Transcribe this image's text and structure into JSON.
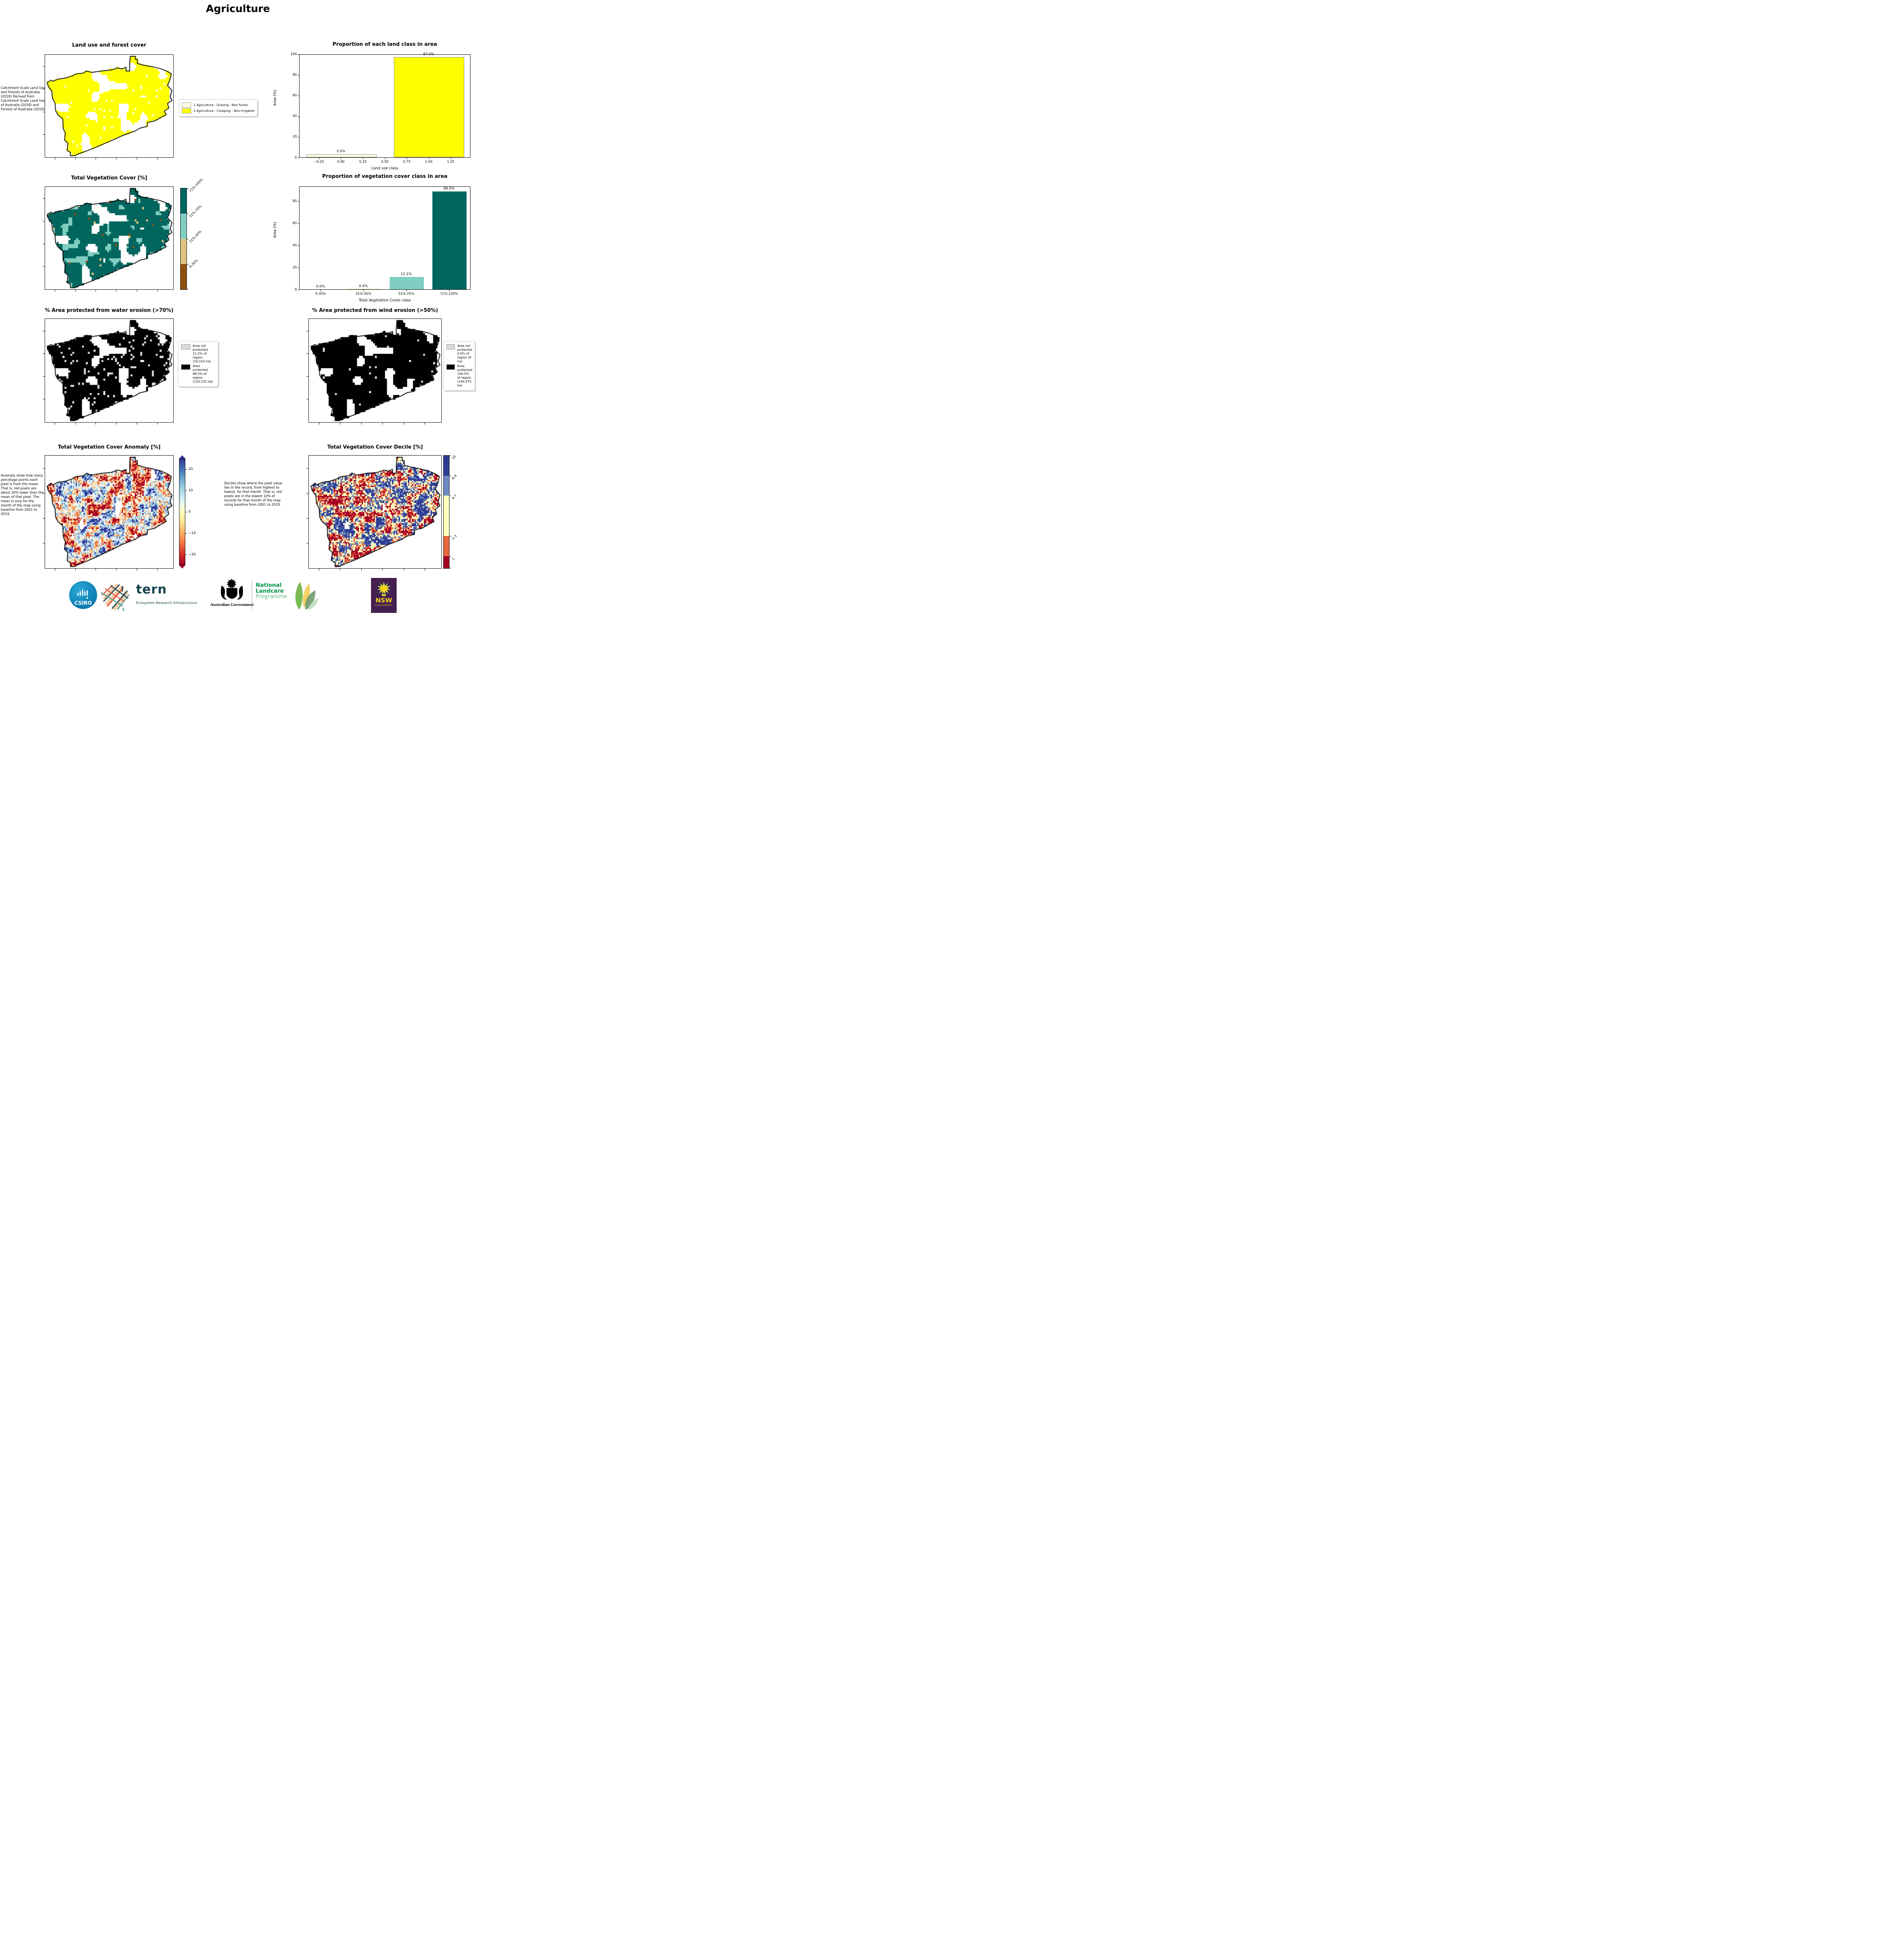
{
  "page": {
    "title": "Agriculture"
  },
  "panels": {
    "land_use": {
      "title": "Land use and forest cover",
      "side_note": " Catchment Scale Land Use and Forests of Australia (2018) Derived from Catchment Scale Land Use of Australia (2018) and Forests of Australia (2018)",
      "legend": [
        {
          "label": "1 Agriculture - Grazing - Non forest",
          "color": "#ffffe0"
        },
        {
          "label": "2 Agriculture - Cropping - Non-irrigated",
          "color": "#ffff00"
        }
      ]
    },
    "veg_cover": {
      "title": "Total Vegetation Cover [%]",
      "colorbar": [
        {
          "label": "71%-100%",
          "color": "#01665e"
        },
        {
          "label": "51%-70%",
          "color": "#80cdc1"
        },
        {
          "label": "31%-50%",
          "color": "#dfc27d"
        },
        {
          "label": "0-30%",
          "color": "#8c510a"
        }
      ]
    },
    "water_erosion": {
      "title": "% Area protected from water erosion (>70%)",
      "legend": [
        {
          "label": "Area not protected 11.5% of region (16,143 ha)",
          "color": "#d9d9d9"
        },
        {
          "label": "Area protected 88.5% of region (124,232 ha)",
          "color": "#000000"
        }
      ]
    },
    "wind_erosion": {
      "title": "% Area protected from wind erosion (>50%)",
      "legend": [
        {
          "label": "Area not protected 0.0% of region (0 ha)",
          "color": "#d9d9d9"
        },
        {
          "label": "Area protected 100.0% of region (140,375 ha)",
          "color": "#000000"
        }
      ]
    },
    "anomaly": {
      "title": "Total Vegetation Cover Anomaly [%]",
      "note": "Anomaly show how many percetage points each pixel is from the mean. That is, red pixels are about 20% lower than the mean of that pixel. The mean is only for the month of the map using baseline from 2001 to 2019.",
      "colorbar_ticks": [
        {
          "label": "20",
          "value": 20
        },
        {
          "label": "10",
          "value": 10
        },
        {
          "label": "0",
          "value": 0
        },
        {
          "label": "−10",
          "value": -10
        },
        {
          "label": "−20",
          "value": -20
        }
      ],
      "range": [
        -25,
        25
      ]
    },
    "decile": {
      "title": "Total Vegetation Cover Decile [%]",
      "note": "Deciles show where the pixel value lies in the record, from highest to lowest, for that month. That is, red pixels are in the lowest 10% of records for that month of the map using baseline from 2001 to 2019.",
      "colorbar": [
        {
          "label": "10",
          "color": "#2f3c94",
          "frac": 0.178
        },
        {
          "label": "8-9",
          "color": "#6e8ac1",
          "frac": 0.177
        },
        {
          "label": "4-7",
          "color": "#ffffbf",
          "frac": 0.358
        },
        {
          "label": "2-3",
          "color": "#e8693f",
          "frac": 0.181
        },
        {
          "label": "1",
          "color": "#a50026",
          "frac": 0.106
        }
      ]
    }
  },
  "chart_data": [
    {
      "type": "bar",
      "title": "Proportion of each land class in area",
      "xlabel": "Land use class",
      "ylabel": "Area (%)",
      "xmode": "numeric",
      "x": [
        0,
        1
      ],
      "values": [
        3.0,
        97.0
      ],
      "bar_labels": [
        "3.0%",
        "97.0%"
      ],
      "bar_colors": [
        "#ffffe0",
        "#ffff00"
      ],
      "bar_edge": "#8a8a8a",
      "bar_width": 0.8,
      "xlim": [
        -0.475,
        1.475
      ],
      "ylim": [
        0,
        100
      ],
      "xticks": {
        "values": [
          -0.25,
          0.0,
          0.25,
          0.5,
          0.75,
          1.0,
          1.25
        ],
        "labels": [
          "−0.25",
          "0.00",
          "0.25",
          "0.50",
          "0.75",
          "1.00",
          "1.25"
        ]
      },
      "yticks": {
        "values": [
          0,
          20,
          40,
          60,
          80,
          100
        ],
        "labels": [
          "0",
          "20",
          "40",
          "60",
          "80",
          "100"
        ]
      },
      "legend_position": "none",
      "grid": false
    },
    {
      "type": "bar",
      "title": "Proportion of vegetation cover class in area",
      "xlabel": "Total Vegetation Cover class",
      "ylabel": "Area (%)",
      "xmode": "categorical",
      "categories": [
        "0-30%",
        "31%-50%",
        "51%-70%",
        "71%-100%"
      ],
      "values": [
        0.0,
        0.4,
        11.1,
        88.5
      ],
      "bar_labels": [
        "0.0%",
        "0.4%",
        "11.1%",
        "88.5%"
      ],
      "bar_colors": [
        "#8c510a",
        "#dfc27d",
        "#80cdc1",
        "#01665e"
      ],
      "bar_edge": null,
      "bar_width": 0.8,
      "ylim": [
        0,
        93.5
      ],
      "yticks": {
        "values": [
          0,
          20,
          40,
          60,
          80
        ],
        "labels": [
          "0",
          "20",
          "40",
          "60",
          "80"
        ]
      },
      "legend_position": "none",
      "grid": false
    }
  ],
  "map_palettes": {
    "land_yellow": "#ffff00",
    "land_cream": "#ffffe0",
    "teal_dark": "#01665e",
    "teal_light": "#80cdc1",
    "tan": "#dfc27d",
    "brown": "#8c510a",
    "not_protected_gray": "#d9d9d9",
    "protected_black": "#000000",
    "anomaly_stops": [
      "#313695",
      "#4575b4",
      "#74add1",
      "#abd9e9",
      "#e0f3f8",
      "#ffffbf",
      "#fee090",
      "#fdae61",
      "#f46d43",
      "#d73027",
      "#a50026"
    ],
    "decile_colors": [
      "#2f3c94",
      "#6e8ac1",
      "#ffffbf",
      "#e8693f",
      "#a50026"
    ]
  },
  "footer": {
    "csiro": "CSIRO",
    "tern": "tern",
    "tern_sub": "Ecosystem Research Infrastructure",
    "aus_gov": "Australian Government",
    "landcare_1": "National",
    "landcare_2": "Landcare",
    "landcare_3": "Programme",
    "nsw": "NSW",
    "nsw_sub": "GOVERNMENT"
  }
}
